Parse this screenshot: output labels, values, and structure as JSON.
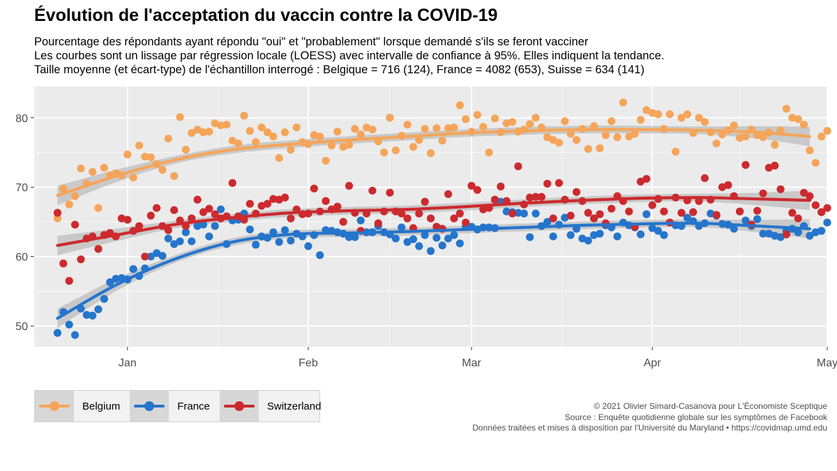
{
  "title": "Évolution de l'acceptation du vaccin contre la COVID-19",
  "subtitle_lines": [
    "Pourcentage des répondants ayant répondu \"oui\" et \"probablement\" lorsque demandé s'ils se feront vacciner",
    "Les courbes sont un lissage par régression locale (LOESS) avec intervalle de confiance à 95%. Elles indiquent la tendance.",
    "Taille moyenne (et écart-type) de l'échantillon interrogé : Belgique = 716 (124), France = 4082 (653), Suisse = 634 (141)"
  ],
  "legend": [
    {
      "label": "Belgium",
      "color": "#F5A55A"
    },
    {
      "label": "France",
      "color": "#2575CC"
    },
    {
      "label": "Switzerland",
      "color": "#CC2A2E"
    }
  ],
  "credits": [
    "© 2021 Olivier Simard-Casanova pour L'Économiste Sceptique",
    "Source : Enquête quotidienne globale sur les symptômes de Facebook",
    "Données traitées et mises à disposition par l'Université du Maryland • https://covidmap.umd.edu"
  ],
  "chart_data": {
    "type": "scatter",
    "x_axis": {
      "type": "date",
      "ticks": [
        "2021-01-01",
        "2021-02-01",
        "2021-03-01",
        "2021-04-01",
        "2021-05-01"
      ],
      "tick_labels": [
        "Jan",
        "Feb",
        "Mar",
        "Apr",
        "May"
      ],
      "xlim": [
        "2020-12-16",
        "2021-05-01"
      ]
    },
    "y_axis": {
      "ticks": [
        50,
        60,
        70,
        80
      ],
      "ylim": [
        47,
        84.5
      ]
    },
    "grid": true,
    "legend_position": "bottom-left",
    "x_start": "2020-12-20",
    "series": [
      {
        "name": "Belgium",
        "color": "#F5A55A",
        "values": [
          65.5,
          69.8,
          67.5,
          68.7,
          72.7,
          70.5,
          72.2,
          67.0,
          72.8,
          71.7,
          72.0,
          71.7,
          74.7,
          71.4,
          76.0,
          74.4,
          74.3,
          73.3,
          72.5,
          77.0,
          71.6,
          80.1,
          75.4,
          77.8,
          78.3,
          77.9,
          78.0,
          79.2,
          78.9,
          79.0,
          76.7,
          76.3,
          80.3,
          78.1,
          76.5,
          78.6,
          77.9,
          77.3,
          74.2,
          77.9,
          75.4,
          78.6,
          76.5,
          76.2,
          77.5,
          77.3,
          73.8,
          76.0,
          78.0,
          75.8,
          76.1,
          78.4,
          77.6,
          78.6,
          78.3,
          76.6,
          75.0,
          80.0,
          75.3,
          77.4,
          79.0,
          75.8,
          76.8,
          78.4,
          74.9,
          78.5,
          76.7,
          78.5,
          78.6,
          81.8,
          79.8,
          78.0,
          80.4,
          78.7,
          75.0,
          79.9,
          77.9,
          79.2,
          79.4,
          78.0,
          78.3,
          79.1,
          80.0,
          78.6,
          77.2,
          76.8,
          76.4,
          79.5,
          77.7,
          76.8,
          78.4,
          75.5,
          78.8,
          75.6,
          77.5,
          79.5,
          77.2,
          82.2,
          77.3,
          77.7,
          79.7,
          81.1,
          80.7,
          80.5,
          78.4,
          80.5,
          75.1,
          80.0,
          80.5,
          77.8,
          80.0,
          79.4,
          77.9,
          76.3,
          77.6,
          78.2,
          78.9,
          77.1,
          77.3,
          78.3,
          77.5,
          77.2,
          77.9,
          76.1,
          78.2,
          81.3,
          80.0,
          79.8,
          79.0,
          75.3,
          73.5,
          77.3,
          78.1
        ]
      },
      {
        "name": "France",
        "color": "#2575CC",
        "values": [
          49.0,
          52.0,
          50.2,
          48.7,
          52.5,
          51.6,
          51.5,
          52.4,
          53.9,
          56.3,
          56.8,
          56.9,
          56.7,
          58.2,
          57.2,
          58.3,
          60.0,
          60.5,
          60.1,
          62.6,
          61.8,
          62.2,
          63.5,
          62.2,
          64.4,
          64.6,
          62.9,
          64.4,
          66.8,
          61.8,
          65.2,
          65.3,
          66.2,
          63.9,
          61.7,
          62.9,
          62.7,
          63.5,
          62.1,
          63.8,
          62.3,
          63.3,
          62.9,
          61.5,
          63.1,
          60.2,
          63.8,
          63.7,
          63.5,
          63.3,
          62.8,
          62.8,
          65.2,
          63.5,
          63.5,
          64.4,
          63.5,
          63.2,
          62.6,
          64.2,
          62.1,
          62.5,
          61.5,
          63.1,
          60.8,
          62.7,
          61.6,
          62.6,
          63.1,
          61.9,
          64.3,
          64.3,
          63.9,
          64.2,
          64.2,
          64.1,
          67.9,
          66.5,
          66.4,
          66.3,
          66.2,
          62.8,
          66.2,
          64.4,
          65.0,
          62.9,
          64.6,
          65.6,
          63.1,
          64.0,
          62.6,
          62.3,
          63.1,
          63.3,
          64.5,
          64.2,
          62.9,
          64.9,
          64.5,
          64.2,
          63.2,
          66.1,
          64.1,
          63.7,
          63.1,
          64.9,
          64.5,
          64.4,
          65.6,
          65.1,
          64.4,
          64.8,
          66.2,
          65.9,
          64.7,
          64.6,
          64.0,
          66.5,
          65.2,
          64.4,
          65.4,
          63.3,
          63.3,
          63.0,
          62.8,
          63.7,
          64.0,
          63.5,
          64.4,
          63.0,
          63.5,
          63.7,
          64.9
        ]
      },
      {
        "name": "Switzerland",
        "color": "#CC2A2E",
        "values": [
          66.3,
          59.0,
          56.5,
          64.6,
          59.6,
          62.6,
          62.9,
          61.1,
          63.1,
          63.4,
          62.9,
          65.5,
          65.3,
          63.7,
          64.4,
          60.0,
          65.9,
          67.0,
          64.4,
          63.8,
          66.7,
          65.2,
          64.4,
          65.5,
          68.2,
          66.4,
          66.9,
          66.1,
          65.5,
          65.8,
          70.6,
          65.8,
          65.3,
          67.6,
          66.2,
          67.3,
          67.6,
          68.3,
          68.2,
          68.5,
          65.5,
          66.8,
          66.1,
          66.2,
          69.8,
          66.5,
          68.0,
          66.8,
          67.2,
          65.0,
          70.2,
          66.3,
          63.7,
          66.2,
          69.5,
          64.8,
          66.5,
          69.2,
          66.5,
          66.2,
          65.5,
          64.1,
          66.2,
          67.9,
          65.5,
          64.3,
          64.0,
          69.0,
          65.5,
          66.2,
          64.9,
          70.2,
          69.6,
          66.8,
          67.0,
          68.2,
          70.1,
          68.0,
          66.2,
          73.0,
          67.5,
          68.5,
          68.6,
          68.6,
          70.5,
          65.5,
          70.6,
          68.2,
          65.9,
          69.3,
          68.0,
          66.3,
          65.5,
          66.1,
          64.8,
          66.9,
          68.7,
          68.0,
          66.5,
          64.3,
          70.8,
          71.2,
          67.4,
          68.3,
          66.5,
          64.9,
          68.5,
          66.3,
          68.1,
          66.4,
          68.0,
          71.3,
          68.2,
          66.0,
          70.0,
          70.3,
          68.7,
          66.5,
          73.2,
          64.6,
          66.6,
          69.1,
          72.8,
          73.1,
          69.7,
          63.2,
          66.3,
          65.5,
          69.2,
          68.7,
          67.4,
          66.4,
          67.0
        ]
      }
    ],
    "trends": [
      {
        "name": "Belgium",
        "color": "#F5A55A",
        "x": [
          "2020-12-20",
          "2020-12-30",
          "2021-01-09",
          "2021-01-19",
          "2021-01-29",
          "2021-02-08",
          "2021-02-18",
          "2021-02-28",
          "2021-03-10",
          "2021-03-20",
          "2021-03-30",
          "2021-04-09",
          "2021-04-19",
          "2021-04-28"
        ],
        "y": [
          68.8,
          71.6,
          73.9,
          75.4,
          76.2,
          76.8,
          77.3,
          77.8,
          78.1,
          78.3,
          78.3,
          78.2,
          77.9,
          77.3
        ]
      },
      {
        "name": "France",
        "color": "#2575CC",
        "x": [
          "2020-12-20",
          "2020-12-30",
          "2021-01-09",
          "2021-01-19",
          "2021-01-29",
          "2021-02-08",
          "2021-02-18",
          "2021-02-28",
          "2021-03-10",
          "2021-03-20",
          "2021-03-30",
          "2021-04-09",
          "2021-04-19",
          "2021-04-28"
        ],
        "y": [
          51.1,
          55.9,
          59.6,
          62.1,
          63.2,
          63.4,
          63.6,
          63.9,
          64.2,
          64.5,
          64.7,
          64.8,
          64.4,
          64.0
        ]
      },
      {
        "name": "Switzerland",
        "color": "#CC2A2E",
        "x": [
          "2020-12-20",
          "2020-12-30",
          "2021-01-09",
          "2021-01-19",
          "2021-01-29",
          "2021-02-08",
          "2021-02-18",
          "2021-02-28",
          "2021-03-10",
          "2021-03-20",
          "2021-03-30",
          "2021-04-09",
          "2021-04-19",
          "2021-04-28"
        ],
        "y": [
          61.6,
          63.1,
          64.6,
          65.6,
          66.3,
          66.6,
          66.8,
          67.2,
          67.7,
          68.1,
          68.4,
          68.5,
          68.3,
          68.1
        ]
      }
    ]
  }
}
